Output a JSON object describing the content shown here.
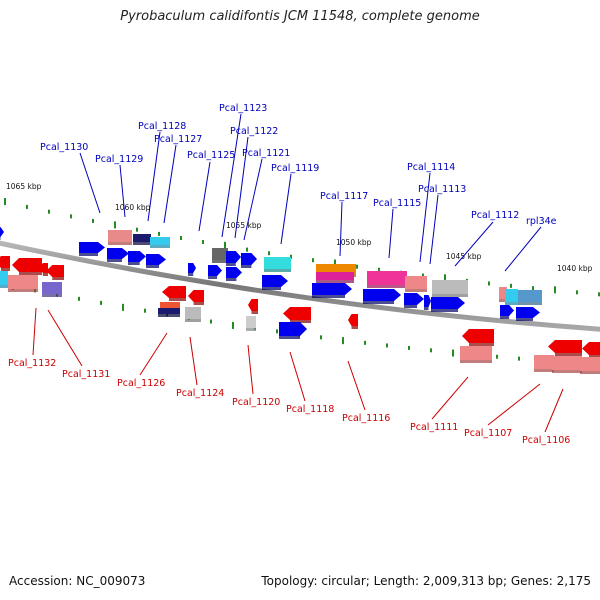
{
  "title": "Pyrobaculum calidifontis JCM 11548, complete genome",
  "accession": "Accession: NC_009073",
  "summary": "Topology: circular; Length: 2,009,313 bp; Genes: 2,175",
  "colors": {
    "forward": "#0000ee",
    "reverse": "#ee0000",
    "forward_label": "#0000bb",
    "reverse_label": "#cc0000",
    "backbone": "#888888",
    "tick": "#228b22"
  },
  "ticks": [
    "1065 kbp",
    "1060 kbp",
    "1055 kbp",
    "1050 kbp",
    "1045 kbp",
    "1040 kbp"
  ],
  "forward_labels": [
    "Pcal_1130",
    "Pcal_1129",
    "Pcal_1128",
    "Pcal_1127",
    "Pcal_1125",
    "Pcal_1123",
    "Pcal_1122",
    "Pcal_1121",
    "Pcal_1119",
    "Pcal_1117",
    "Pcal_1115",
    "Pcal_1114",
    "Pcal_1113",
    "Pcal_1112",
    "rpl34e"
  ],
  "reverse_labels": [
    "Pcal_1132",
    "Pcal_1131",
    "Pcal_1126",
    "Pcal_1124",
    "Pcal_1120",
    "Pcal_1118",
    "Pcal_1116",
    "Pcal_1111",
    "Pcal_1107",
    "Pcal_1106"
  ]
}
